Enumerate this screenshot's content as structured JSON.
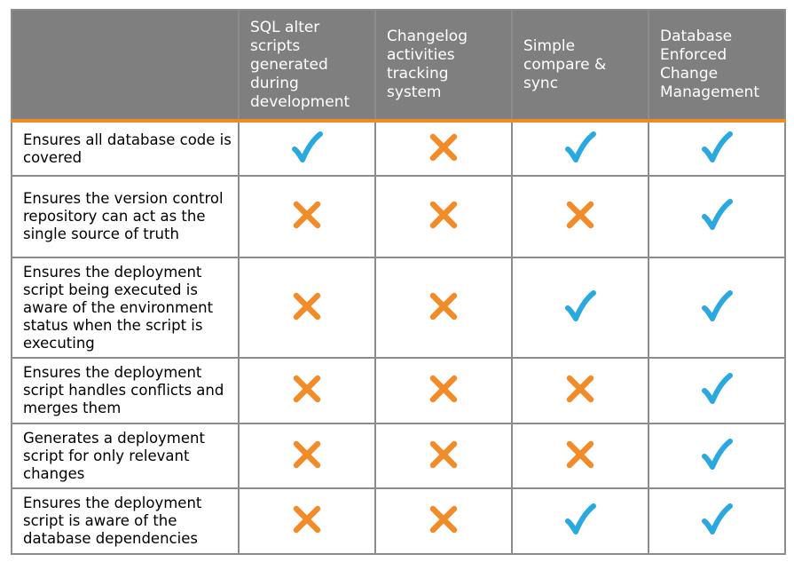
{
  "columns": [
    "SQL alter scripts generated during development",
    "Changelog activities tracking system",
    "Simple compare & sync",
    "Database Enforced Change Management"
  ],
  "rows": [
    {
      "label": "Ensures all database code is covered",
      "marks": [
        "check",
        "cross",
        "check",
        "check"
      ]
    },
    {
      "label": "Ensures the version control repository can act as the single source of truth",
      "marks": [
        "cross",
        "cross",
        "cross",
        "check"
      ]
    },
    {
      "label": "Ensures the deployment script being executed is aware of the environment status when the script is executing",
      "marks": [
        "cross",
        "cross",
        "check",
        "check"
      ]
    },
    {
      "label": "Ensures the deployment script handles conflicts and merges them",
      "marks": [
        "cross",
        "cross",
        "cross",
        "check"
      ]
    },
    {
      "label": "Generates a deployment script for only relevant changes",
      "marks": [
        "cross",
        "cross",
        "cross",
        "check"
      ]
    },
    {
      "label": "Ensures the deployment script is aware of the database dependencies",
      "marks": [
        "cross",
        "cross",
        "check",
        "check"
      ]
    }
  ],
  "colors": {
    "header_bg": "#7f7f7f",
    "header_text": "#ffffff",
    "accent_line": "#f08a24",
    "check": "#2aa8e0",
    "cross": "#f28c28",
    "grid": "#8c8c8c"
  },
  "icons": {
    "check": "check-icon",
    "cross": "cross-icon"
  }
}
